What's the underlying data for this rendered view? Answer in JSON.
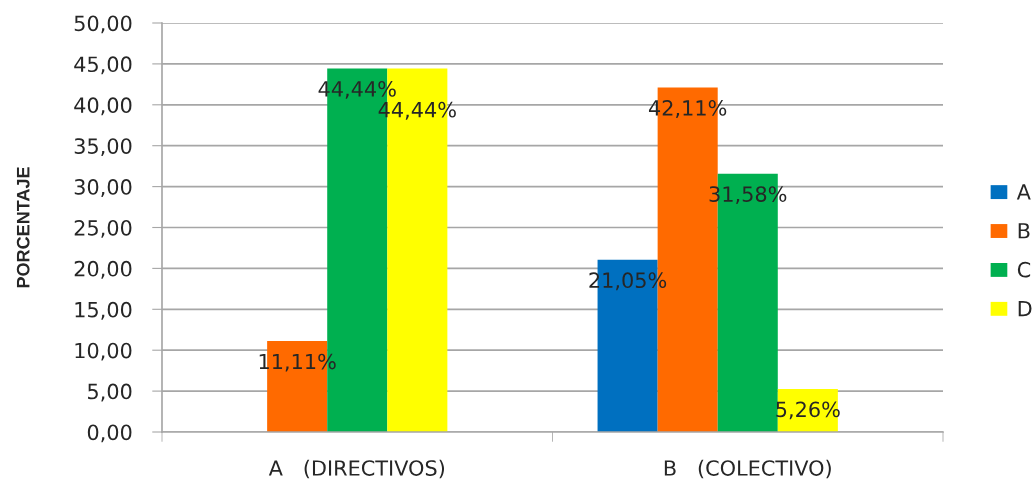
{
  "chart_data": {
    "type": "bar",
    "ylabel": "PORCENTAJE",
    "categories": [
      "A   (DIRECTIVOS)",
      "B   (COLECTIVO)"
    ],
    "series": [
      {
        "name": "A",
        "color": "#0070c0",
        "values": [
          null,
          21.05
        ],
        "value_labels": [
          null,
          "21,05%"
        ]
      },
      {
        "name": "B",
        "color": "#ff6a00",
        "values": [
          11.11,
          42.11
        ],
        "value_labels": [
          "11,11%",
          "42,11%"
        ]
      },
      {
        "name": "C",
        "color": "#00b050",
        "values": [
          44.44,
          31.58
        ],
        "value_labels": [
          "44,44%",
          "31,58%"
        ]
      },
      {
        "name": "D",
        "color": "#ffff00",
        "values": [
          44.44,
          5.26
        ],
        "value_labels": [
          "44,44%",
          "5,26%"
        ]
      }
    ],
    "ylim": [
      0,
      50
    ],
    "yticks": [
      {
        "value": 0,
        "label": "0,00"
      },
      {
        "value": 5,
        "label": "5,00"
      },
      {
        "value": 10,
        "label": "10,00"
      },
      {
        "value": 15,
        "label": "15,00"
      },
      {
        "value": 20,
        "label": "20,00"
      },
      {
        "value": 25,
        "label": "25,00"
      },
      {
        "value": 30,
        "label": "30,00"
      },
      {
        "value": 35,
        "label": "35,00"
      },
      {
        "value": 40,
        "label": "40,00"
      },
      {
        "value": 45,
        "label": "45,00"
      },
      {
        "value": 50,
        "label": "50,00"
      }
    ],
    "grid": "y",
    "legend": "right"
  }
}
